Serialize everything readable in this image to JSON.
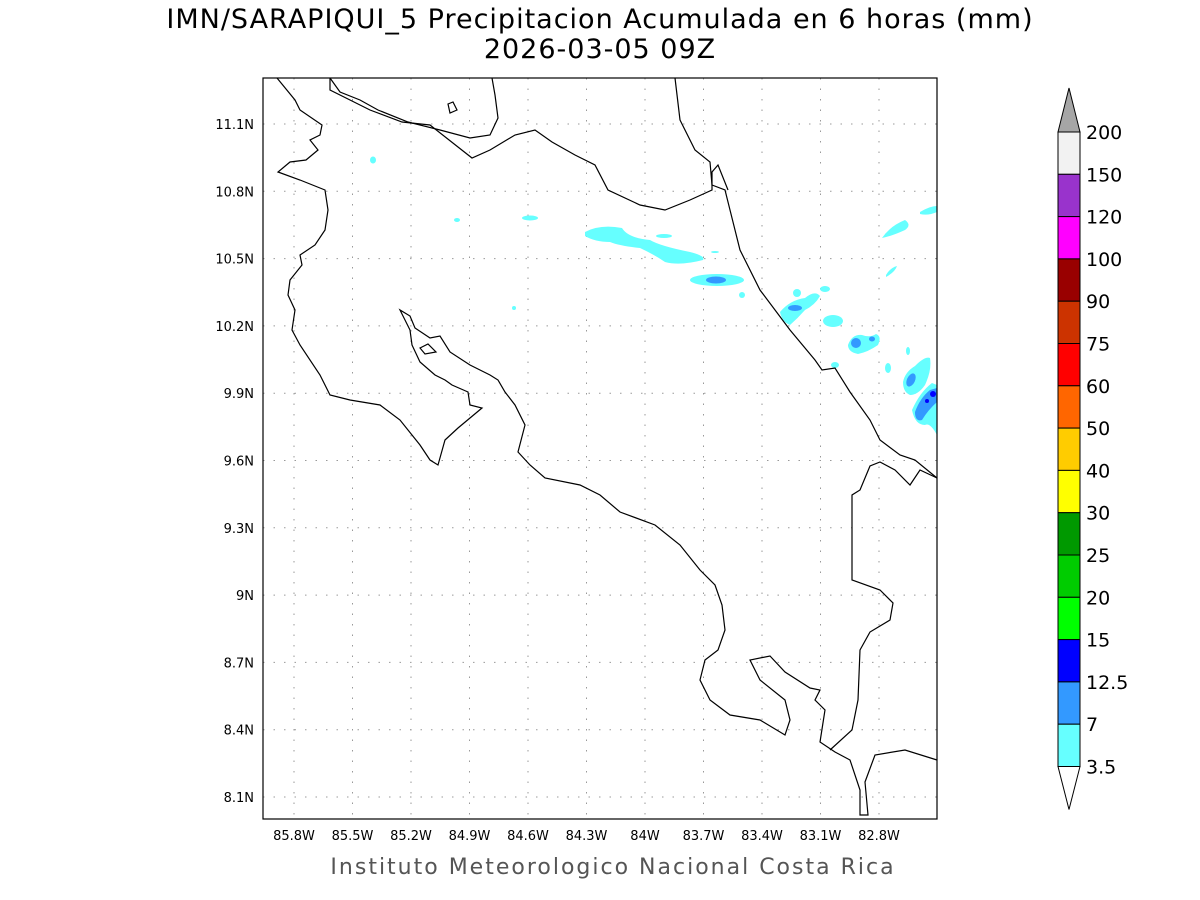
{
  "title": {
    "line1": "IMN/SARAPIQUI_5 Precipitacion Acumulada en 6 horas (mm)",
    "line2": "2026-03-05 09Z"
  },
  "credit": "Instituto Meteorologico Nacional Costa Rica",
  "map": {
    "lon_ticks": [
      "85.8W",
      "85.5W",
      "85.2W",
      "84.9W",
      "84.6W",
      "84.3W",
      "84W",
      "83.7W",
      "83.4W",
      "83.1W",
      "82.8W"
    ],
    "lat_ticks": [
      "11.1N",
      "10.8N",
      "10.5N",
      "10.2N",
      "9.9N",
      "9.6N",
      "9.3N",
      "9N",
      "8.7N",
      "8.4N",
      "8.1N"
    ],
    "gridlines": "dotted",
    "region": "Costa Rica"
  },
  "colorbar": {
    "labels": [
      "200",
      "150",
      "120",
      "100",
      "90",
      "75",
      "60",
      "50",
      "40",
      "30",
      "25",
      "20",
      "15",
      "12.5",
      "7",
      "3.5"
    ],
    "colors": [
      "#f2f2f2",
      "#9933cc",
      "#ff00ff",
      "#990000",
      "#cc3300",
      "#ff0000",
      "#ff6600",
      "#ffcc00",
      "#ffff00",
      "#009900",
      "#00cc00",
      "#00ff00",
      "#0000ff",
      "#3399ff",
      "#66ffff"
    ],
    "over_color": "#a6a6a6",
    "under_color": "#ffffff"
  }
}
